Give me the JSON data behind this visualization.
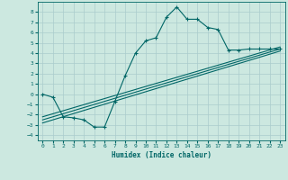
{
  "title": "",
  "xlabel": "Humidex (Indice chaleur)",
  "ylabel": "",
  "bg_color": "#cce8e0",
  "grid_color": "#aacccc",
  "line_color": "#006666",
  "xlim": [
    -0.5,
    23.5
  ],
  "ylim": [
    -4.5,
    9.0
  ],
  "xticks": [
    0,
    1,
    2,
    3,
    4,
    5,
    6,
    7,
    8,
    9,
    10,
    11,
    12,
    13,
    14,
    15,
    16,
    17,
    18,
    19,
    20,
    21,
    22,
    23
  ],
  "yticks": [
    -4,
    -3,
    -2,
    -1,
    0,
    1,
    2,
    3,
    4,
    5,
    6,
    7,
    8
  ],
  "main_x": [
    0,
    1,
    2,
    3,
    4,
    5,
    6,
    7,
    8,
    9,
    10,
    11,
    12,
    13,
    14,
    15,
    16,
    17,
    18,
    19,
    20,
    21,
    22,
    23
  ],
  "main_y": [
    0.0,
    -0.3,
    -2.2,
    -2.3,
    -2.5,
    -3.2,
    -3.2,
    -0.7,
    1.8,
    4.0,
    5.2,
    5.5,
    7.5,
    8.5,
    7.3,
    7.3,
    6.5,
    6.3,
    4.3,
    4.3,
    4.4,
    4.4,
    4.4,
    4.4
  ],
  "line1_x": [
    0,
    23
  ],
  "line1_y": [
    -2.8,
    4.2
  ],
  "line2_x": [
    0,
    23
  ],
  "line2_y": [
    -2.5,
    4.4
  ],
  "line3_x": [
    0,
    23
  ],
  "line3_y": [
    -2.2,
    4.6
  ]
}
